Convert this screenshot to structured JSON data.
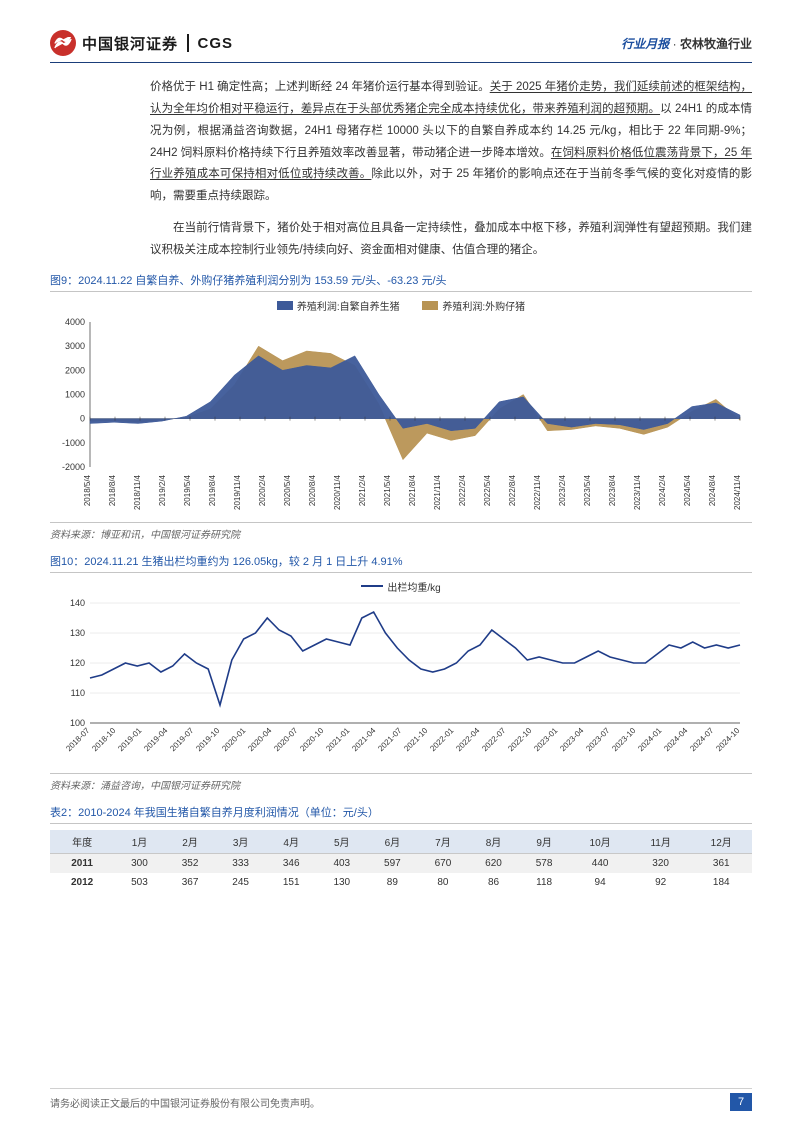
{
  "header": {
    "logo_cn": "中国银河证券",
    "logo_en": "CGS",
    "right_blue": "行业月报",
    "right_sep": " · ",
    "right_black": "农林牧渔行业"
  },
  "para1_a": "价格优于 H1 确定性高；上述判断经 24 年猪价运行基本得到验证。",
  "para1_u1": "关于 2025 年猪价走势，我们延续前述的框架结构，认为全年均价相对平稳运行，差异点在于头部优秀猪企完全成本持续优化，带来养殖利润的超预期。",
  "para1_b": "以 24H1 的成本情况为例，根据涌益咨询数据，24H1 母猪存栏 10000 头以下的自繁自养成本约 14.25 元/kg，相比于 22 年同期-9%；24H2 饲料原料价格持续下行且养殖效率改善显著，带动猪企进一步降本增效。",
  "para1_u2": "在饲料原料价格低位震荡背景下，25 年行业养殖成本可保持相对低位或持续改善。",
  "para1_c": "除此以外，对于 25 年猪价的影响点还在于当前冬季气候的变化对疫情的影响，需要重点持续跟踪。",
  "para2": "在当前行情背景下，猪价处于相对高位且具备一定持续性，叠加成本中枢下移，养殖利润弹性有望超预期。我们建议积极关注成本控制行业领先/持续向好、资金面相对健康、估值合理的猪企。",
  "fig9": {
    "title": "图9：2024.11.22 自繁自养、外购仔猪养殖利润分别为 153.59 元/头、-63.23 元/头",
    "legend1": "养殖利润:自繁自养生猪",
    "legend2": "养殖利润:外购仔猪",
    "color1": "#3d5a99",
    "color2": "#b89454",
    "ylim": [
      -2000,
      4000
    ],
    "yticks": [
      -2000,
      -1000,
      0,
      1000,
      2000,
      3000,
      4000
    ],
    "xlabels": [
      "2018/5/4",
      "2018/8/4",
      "2018/11/4",
      "2019/2/4",
      "2019/5/4",
      "2019/8/4",
      "2019/11/4",
      "2020/2/4",
      "2020/5/4",
      "2020/8/4",
      "2020/11/4",
      "2021/2/4",
      "2021/5/4",
      "2021/8/4",
      "2021/11/4",
      "2022/2/4",
      "2022/5/4",
      "2022/8/4",
      "2022/11/4",
      "2023/2/4",
      "2023/5/4",
      "2023/8/4",
      "2023/11/4",
      "2024/2/4",
      "2024/5/4",
      "2024/8/4",
      "2024/11/4"
    ],
    "series1": [
      -200,
      -150,
      -200,
      -100,
      100,
      700,
      1800,
      2600,
      2000,
      2200,
      2100,
      2600,
      1000,
      -400,
      -200,
      -500,
      -400,
      700,
      900,
      -200,
      -350,
      -200,
      -250,
      -450,
      -200,
      500,
      650,
      150
    ],
    "series2": [
      -100,
      -80,
      -150,
      -50,
      50,
      400,
      1400,
      3000,
      2400,
      2800,
      2700,
      2200,
      600,
      -1700,
      -600,
      -900,
      -700,
      400,
      1000,
      -500,
      -450,
      -300,
      -400,
      -650,
      -350,
      300,
      800,
      -60
    ],
    "source": "资料来源：博亚和讯，中国银河证券研究院"
  },
  "fig10": {
    "title": "图10：2024.11.21 生猪出栏均重约为 126.05kg，较 2 月 1 日上升 4.91%",
    "legend": "出栏均重/kg",
    "color": "#1f3c88",
    "ylim": [
      100,
      140
    ],
    "yticks": [
      100,
      110,
      120,
      130,
      140
    ],
    "xlabels": [
      "2018-07",
      "2018-10",
      "2019-01",
      "2019-04",
      "2019-07",
      "2019-10",
      "2020-01",
      "2020-04",
      "2020-07",
      "2020-10",
      "2021-01",
      "2021-04",
      "2021-07",
      "2021-10",
      "2022-01",
      "2022-04",
      "2022-07",
      "2022-10",
      "2023-01",
      "2023-04",
      "2023-07",
      "2023-10",
      "2024-01",
      "2024-04",
      "2024-07",
      "2024-10"
    ],
    "data": [
      115,
      116,
      118,
      120,
      119,
      120,
      117,
      119,
      123,
      120,
      118,
      106,
      121,
      128,
      130,
      135,
      131,
      129,
      124,
      126,
      128,
      127,
      126,
      135,
      137,
      130,
      125,
      121,
      118,
      117,
      118,
      120,
      124,
      126,
      131,
      128,
      125,
      121,
      122,
      121,
      120,
      120,
      122,
      124,
      122,
      121,
      120,
      120,
      123,
      126,
      125,
      127,
      125,
      126,
      125,
      126
    ],
    "source": "资料来源：涌益咨询，中国银河证券研究院"
  },
  "table2": {
    "title": "表2：2010-2024 年我国生猪自繁自养月度利润情况（单位：元/头）",
    "columns": [
      "年度",
      "1月",
      "2月",
      "3月",
      "4月",
      "5月",
      "6月",
      "7月",
      "8月",
      "9月",
      "10月",
      "11月",
      "12月"
    ],
    "rows": [
      [
        "2011",
        "300",
        "352",
        "333",
        "346",
        "403",
        "597",
        "670",
        "620",
        "578",
        "440",
        "320",
        "361"
      ],
      [
        "2012",
        "503",
        "367",
        "245",
        "151",
        "130",
        "89",
        "80",
        "86",
        "118",
        "94",
        "92",
        "184"
      ]
    ]
  },
  "footer": {
    "disclaimer": "请务必阅读正文最后的中国银河证券股份有限公司免责声明。",
    "page": "7"
  }
}
